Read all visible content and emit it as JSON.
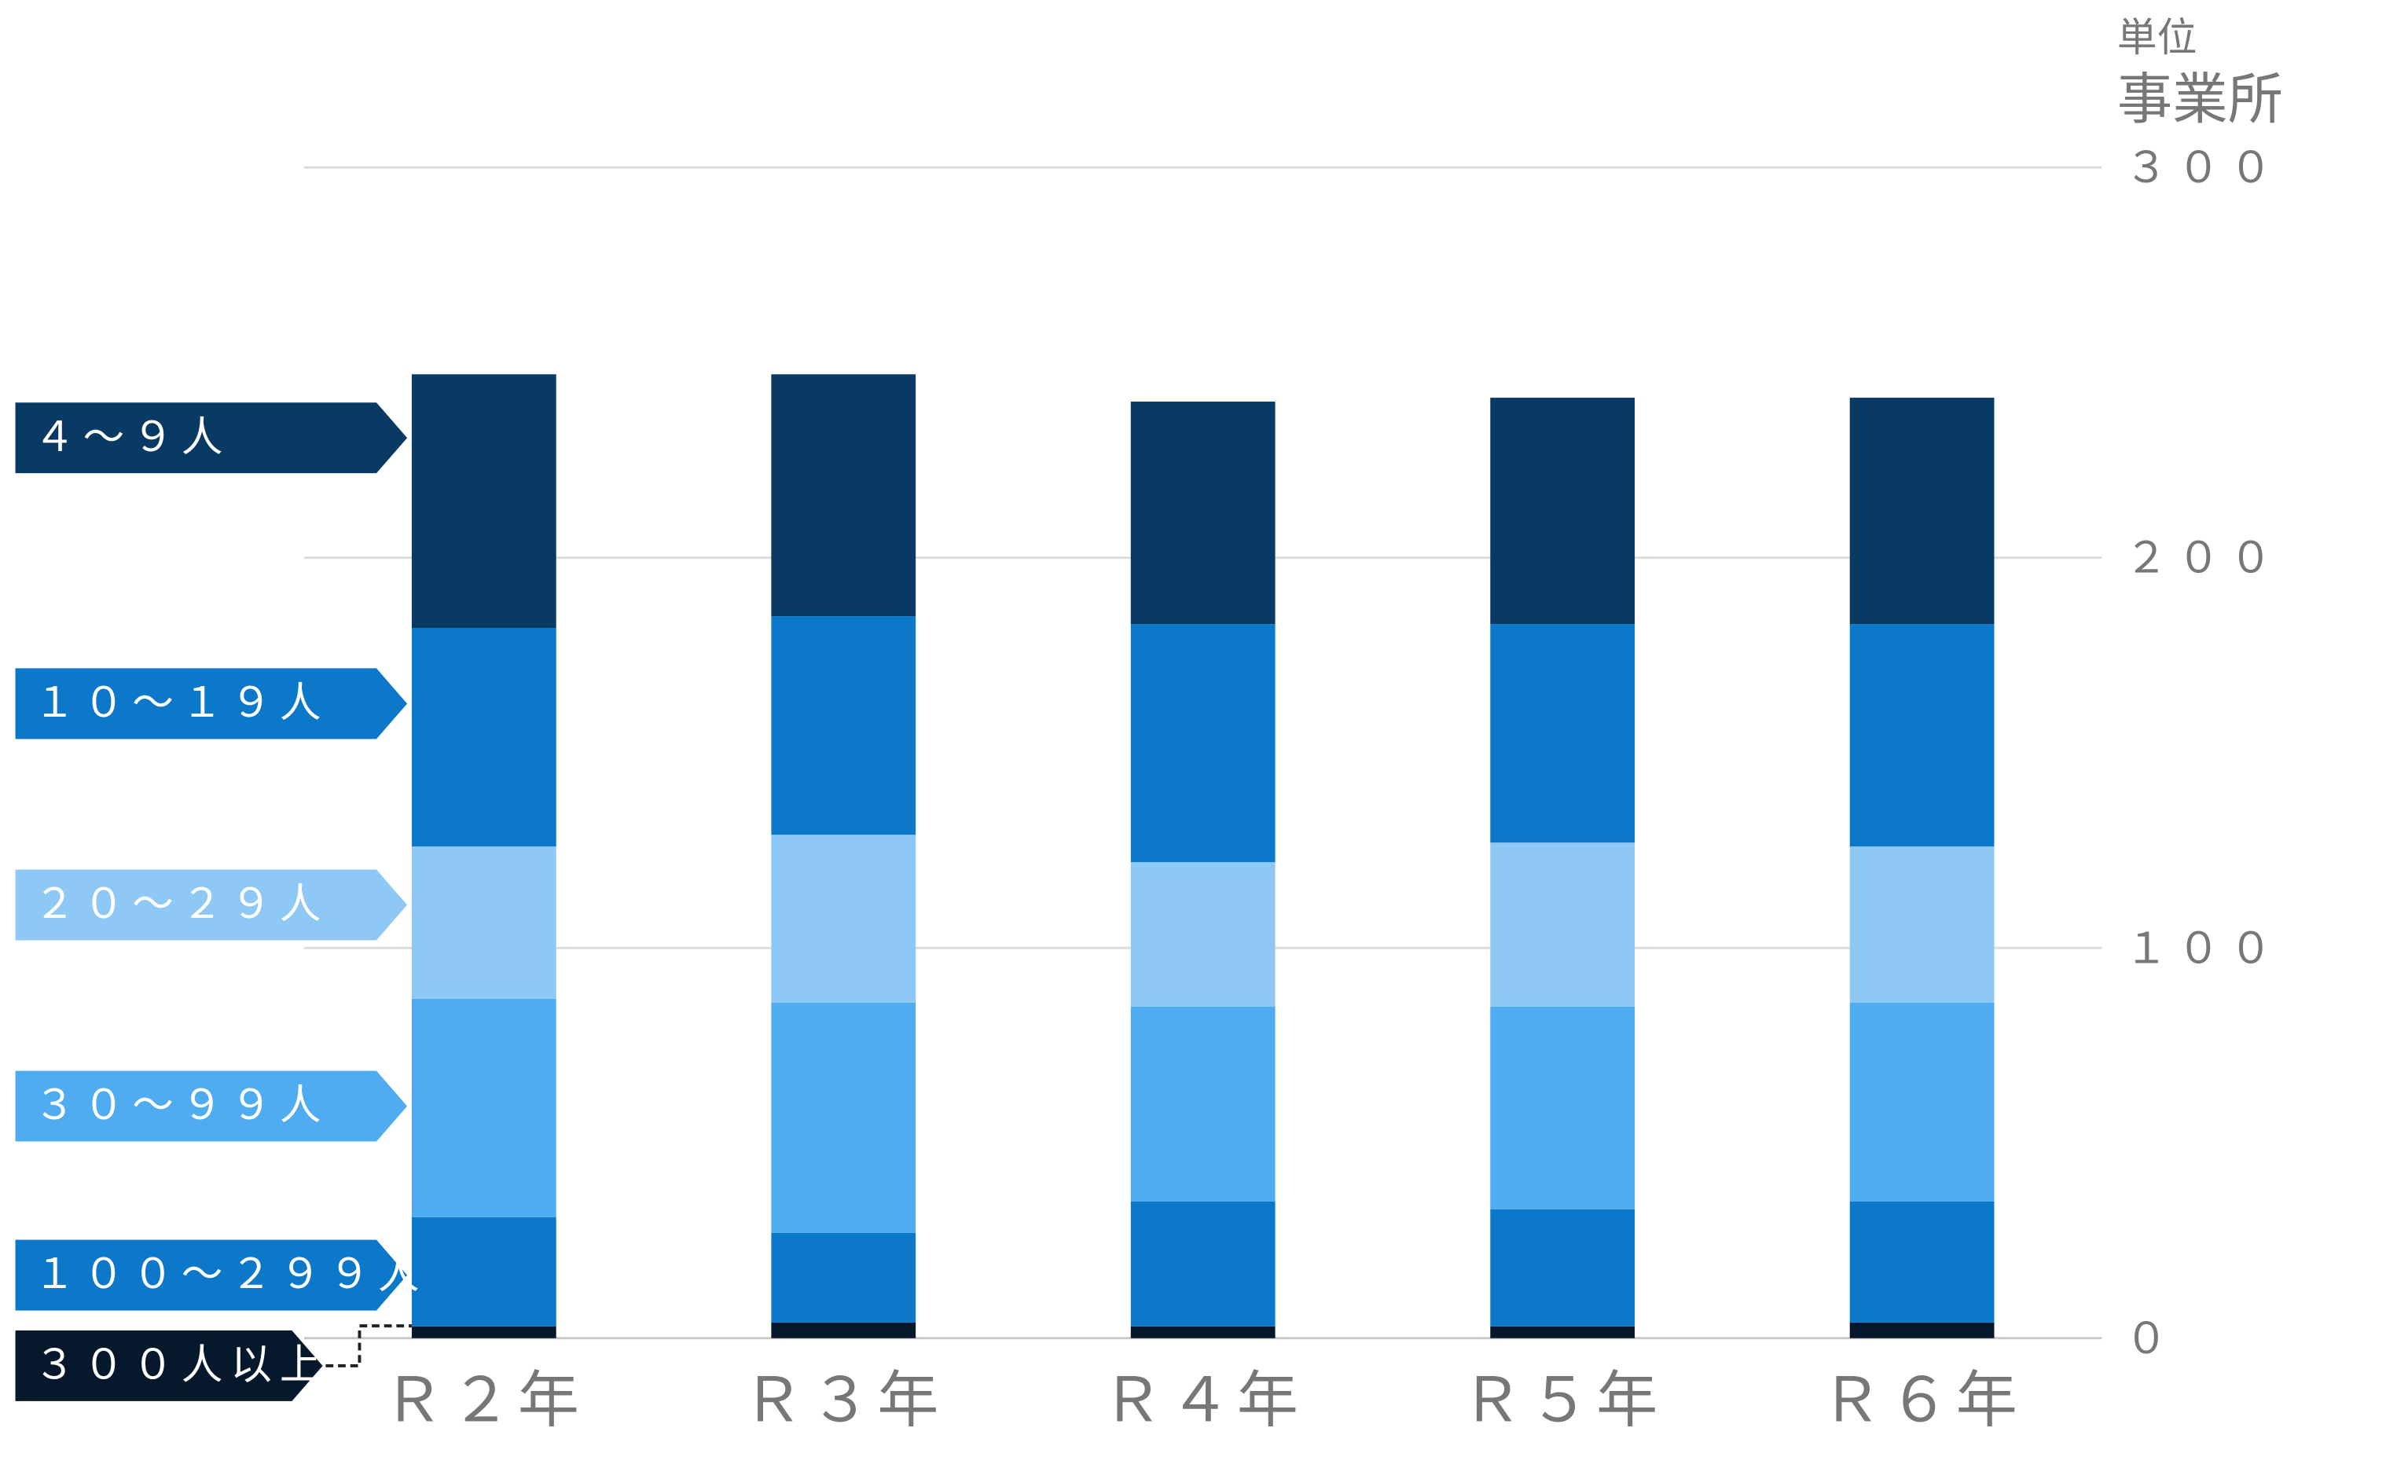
{
  "chart_data": {
    "type": "bar",
    "stacked": true,
    "unit_label": "単位",
    "unit": "事業所",
    "categories": [
      "Ｒ２年",
      "Ｒ３年",
      "Ｒ４年",
      "Ｒ５年",
      "Ｒ６年"
    ],
    "series": [
      {
        "name": "３００人以上",
        "color": "#06182b",
        "values": [
          3,
          4,
          3,
          3,
          4
        ]
      },
      {
        "name": "１００～２９９人",
        "color": "#0b78c9",
        "values": [
          28,
          23,
          32,
          30,
          31
        ]
      },
      {
        "name": "３０～９９人",
        "color": "#50acf0",
        "values": [
          56,
          59,
          50,
          52,
          51
        ]
      },
      {
        "name": "２０～２９人",
        "color": "#8ec9f5",
        "values": [
          39,
          43,
          37,
          42,
          40
        ]
      },
      {
        "name": "１０～１９人",
        "color": "#0b78c9",
        "values": [
          56,
          56,
          61,
          56,
          57
        ]
      },
      {
        "name": "４～９人",
        "color": "#083a63",
        "values": [
          65,
          62,
          57,
          58,
          58
        ]
      }
    ],
    "ylim": [
      0,
      300
    ],
    "yticks": [
      {
        "value": 0,
        "label": "０"
      },
      {
        "value": 100,
        "label": "１００"
      },
      {
        "value": 200,
        "label": "２００"
      },
      {
        "value": 300,
        "label": "３００"
      }
    ],
    "grid": true
  }
}
